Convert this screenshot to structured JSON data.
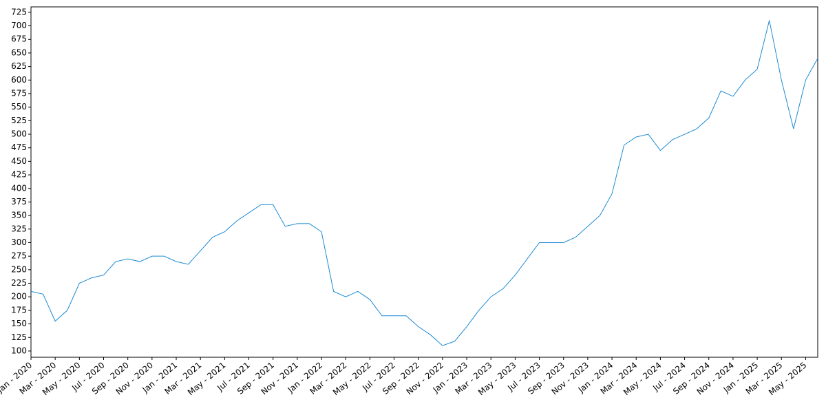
{
  "chart_data": {
    "type": "line",
    "x": [
      "2020-01",
      "2020-02",
      "2020-03",
      "2020-04",
      "2020-05",
      "2020-06",
      "2020-07",
      "2020-08",
      "2020-09",
      "2020-10",
      "2020-11",
      "2020-12",
      "2021-01",
      "2021-02",
      "2021-03",
      "2021-04",
      "2021-05",
      "2021-06",
      "2021-07",
      "2021-08",
      "2021-09",
      "2021-10",
      "2021-11",
      "2021-12",
      "2022-01",
      "2022-02",
      "2022-03",
      "2022-04",
      "2022-05",
      "2022-06",
      "2022-07",
      "2022-08",
      "2022-09",
      "2022-10",
      "2022-11",
      "2022-12",
      "2023-01",
      "2023-02",
      "2023-03",
      "2023-04",
      "2023-05",
      "2023-06",
      "2023-07",
      "2023-08",
      "2023-09",
      "2023-10",
      "2023-11",
      "2023-12",
      "2024-01",
      "2024-02",
      "2024-03",
      "2024-04",
      "2024-05",
      "2024-06",
      "2024-07",
      "2024-08",
      "2024-09",
      "2024-10",
      "2024-11",
      "2024-12",
      "2025-01",
      "2025-02",
      "2025-03",
      "2025-04",
      "2025-05",
      "2025-06"
    ],
    "series": [
      {
        "color": "#1a8ad4",
        "values": [
          210,
          205,
          155,
          175,
          225,
          235,
          240,
          265,
          270,
          265,
          275,
          275,
          265,
          260,
          285,
          310,
          320,
          340,
          355,
          370,
          370,
          330,
          335,
          335,
          320,
          210,
          200,
          210,
          195,
          165,
          165,
          165,
          145,
          130,
          110,
          118,
          145,
          175,
          200,
          215,
          240,
          270,
          300,
          300,
          300,
          310,
          330,
          350,
          390,
          480,
          495,
          500,
          470,
          490,
          500,
          510,
          530,
          580,
          570,
          600,
          620,
          710,
          600,
          510,
          600,
          640
        ]
      }
    ],
    "xlim": [
      "2020-01",
      "2025-06"
    ],
    "xticks": [
      {
        "value": "2020-01",
        "label": "Jan - 2020"
      },
      {
        "value": "2020-03",
        "label": "Mar - 2020"
      },
      {
        "value": "2020-05",
        "label": "May - 2020"
      },
      {
        "value": "2020-07",
        "label": "Jul - 2020"
      },
      {
        "value": "2020-09",
        "label": "Sep - 2020"
      },
      {
        "value": "2020-11",
        "label": "Nov - 2020"
      },
      {
        "value": "2021-01",
        "label": "Jan - 2021"
      },
      {
        "value": "2021-03",
        "label": "Mar - 2021"
      },
      {
        "value": "2021-05",
        "label": "May - 2021"
      },
      {
        "value": "2021-07",
        "label": "Jul - 2021"
      },
      {
        "value": "2021-09",
        "label": "Sep - 2021"
      },
      {
        "value": "2021-11",
        "label": "Nov - 2021"
      },
      {
        "value": "2022-01",
        "label": "Jan - 2022"
      },
      {
        "value": "2022-03",
        "label": "Mar - 2022"
      },
      {
        "value": "2022-05",
        "label": "May - 2022"
      },
      {
        "value": "2022-07",
        "label": "Jul - 2022"
      },
      {
        "value": "2022-09",
        "label": "Sep - 2022"
      },
      {
        "value": "2022-11",
        "label": "Nov - 2022"
      },
      {
        "value": "2023-01",
        "label": "Jan - 2023"
      },
      {
        "value": "2023-03",
        "label": "Mar - 2023"
      },
      {
        "value": "2023-05",
        "label": "May - 2023"
      },
      {
        "value": "2023-07",
        "label": "Jul - 2023"
      },
      {
        "value": "2023-09",
        "label": "Sep - 2023"
      },
      {
        "value": "2023-11",
        "label": "Nov - 2023"
      },
      {
        "value": "2024-01",
        "label": "Jan - 2024"
      },
      {
        "value": "2024-03",
        "label": "Mar - 2024"
      },
      {
        "value": "2024-05",
        "label": "May - 2024"
      },
      {
        "value": "2024-07",
        "label": "Jul - 2024"
      },
      {
        "value": "2024-09",
        "label": "Sep - 2024"
      },
      {
        "value": "2024-11",
        "label": "Nov - 2024"
      },
      {
        "value": "2025-01",
        "label": "Jan - 2025"
      },
      {
        "value": "2025-03",
        "label": "Mar - 2025"
      },
      {
        "value": "2025-05",
        "label": "May - 2025"
      }
    ],
    "ylim": [
      88.5,
      735
    ],
    "yticks": [
      100,
      125,
      150,
      175,
      200,
      225,
      250,
      275,
      300,
      325,
      350,
      375,
      400,
      425,
      450,
      475,
      500,
      525,
      550,
      575,
      600,
      625,
      650,
      675,
      700,
      725
    ],
    "grid": false
  }
}
